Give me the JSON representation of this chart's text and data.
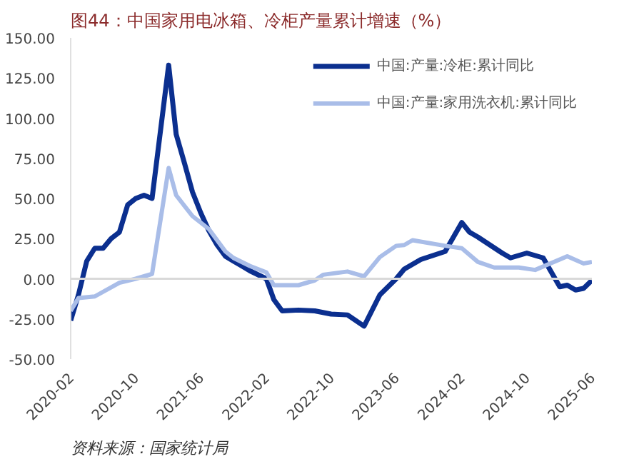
{
  "chart_data": {
    "type": "line",
    "title": "图44：中国家用电冰箱、冷柜产量累计增速（%）",
    "annotations": [
      "资料来源：国家统计局"
    ],
    "series": [
      {
        "name": "中国:产量:冷柜:累计同比",
        "color": "#0b2f8f",
        "x": [
          "2020-02",
          "2020-03",
          "2020-04",
          "2020-05",
          "2020-06",
          "2020-07",
          "2020-08",
          "2020-09",
          "2020-10",
          "2020-11",
          "2020-12",
          "2021-02",
          "2021-03",
          "2021-04",
          "2021-05",
          "2021-06",
          "2021-07",
          "2021-08",
          "2021-09",
          "2021-10",
          "2021-11",
          "2021-12",
          "2022-02",
          "2022-03",
          "2022-04",
          "2022-06",
          "2022-08",
          "2022-10",
          "2022-12",
          "2023-02",
          "2023-04",
          "2023-06",
          "2023-07",
          "2023-09",
          "2023-12",
          "2024-02",
          "2024-03",
          "2024-04",
          "2024-07",
          "2024-08",
          "2024-10",
          "2024-12",
          "2025-02",
          "2025-03",
          "2025-04",
          "2025-05",
          "2025-06"
        ],
        "values": [
          -26,
          -10,
          11,
          19,
          19,
          25,
          29,
          46,
          50,
          52,
          50,
          133,
          90,
          72,
          54,
          41,
          30,
          21,
          14,
          11,
          8,
          5,
          0,
          -13,
          -20,
          -19.5,
          -20,
          -22,
          -22.5,
          -29.5,
          -10,
          0,
          6,
          12,
          17,
          35,
          29,
          26,
          16,
          13,
          16,
          13,
          -5,
          -4,
          -7,
          -6,
          -1
        ]
      },
      {
        "name": "中国:产量:家用洗衣机:累计同比",
        "color": "#a9bde8",
        "x": [
          "2020-02",
          "2020-03",
          "2020-05",
          "2020-08",
          "2020-10",
          "2020-12",
          "2021-02",
          "2021-03",
          "2021-05",
          "2021-07",
          "2021-09",
          "2021-10",
          "2021-12",
          "2022-02",
          "2022-03",
          "2022-06",
          "2022-08",
          "2022-09",
          "2022-12",
          "2023-02",
          "2023-04",
          "2023-06",
          "2023-07",
          "2023-08",
          "2023-12",
          "2024-02",
          "2024-04",
          "2024-06",
          "2024-09",
          "2024-11",
          "2025-02",
          "2025-03",
          "2025-05",
          "2025-06"
        ],
        "values": [
          -20,
          -12,
          -11,
          -2.5,
          0,
          3,
          69,
          52,
          39,
          31,
          17,
          13,
          8,
          4,
          -4,
          -4,
          -1,
          2.5,
          4.5,
          1.5,
          13.5,
          20.5,
          21,
          24,
          20.5,
          19,
          10.5,
          7,
          7,
          5.5,
          12,
          14,
          9.5,
          10.5
        ]
      }
    ],
    "xlim": [
      "2020-02",
      "2025-06"
    ],
    "xticks": [
      "2020-02",
      "2020-10",
      "2021-06",
      "2022-02",
      "2022-10",
      "2023-06",
      "2024-02",
      "2024-10",
      "2025-06"
    ],
    "ylim": [
      -50,
      150
    ],
    "yticks": [
      {
        "value": 150,
        "label": "150.00"
      },
      {
        "value": 125,
        "label": "125.00"
      },
      {
        "value": 100,
        "label": "100.00"
      },
      {
        "value": 75,
        "label": "75.00"
      },
      {
        "value": 50,
        "label": "50.00"
      },
      {
        "value": 25,
        "label": "25.00"
      },
      {
        "value": 0,
        "label": "0.00"
      },
      {
        "value": -25,
        "label": "-25.00"
      },
      {
        "value": -50,
        "label": "-50.00"
      }
    ],
    "ref_lines": [
      {
        "axis": "y",
        "value": 0,
        "color": "#d9d9d9"
      }
    ],
    "legend": "top right",
    "grid": false,
    "marker": "none",
    "line_style": "solid"
  }
}
